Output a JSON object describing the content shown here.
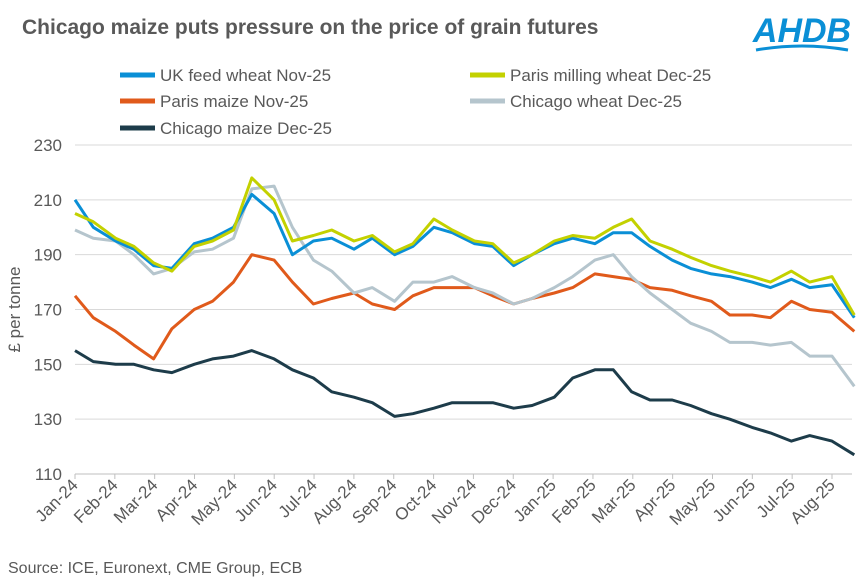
{
  "title": "Chicago maize puts pressure on the price of grain futures",
  "logo_text": "AHDB",
  "source": "Source: ICE, Euronext, CME Group, ECB",
  "colors": {
    "brand": "#0a8fd6"
  },
  "chart_data": {
    "type": "line",
    "title": "Chicago maize puts pressure on the price of grain futures",
    "xlabel": "",
    "ylabel": "£ per tonne",
    "ylim": [
      110,
      230
    ],
    "yticks": [
      110,
      130,
      150,
      170,
      190,
      210,
      230
    ],
    "xticks": [
      "Jan-24",
      "Feb-24",
      "Mar-24",
      "Apr-24",
      "May-24",
      "Jun-24",
      "Jul-24",
      "Aug-24",
      "Sep-24",
      "Oct-24",
      "Nov-24",
      "Dec-24",
      "Jan-25",
      "Feb-25",
      "Mar-25",
      "Apr-25",
      "May-25",
      "Jun-25",
      "Jul-25",
      "Aug-25"
    ],
    "grid": "horizontal",
    "legend": "top",
    "x": [
      "2024-01-01",
      "2024-01-15",
      "2024-02-01",
      "2024-02-15",
      "2024-03-01",
      "2024-03-15",
      "2024-04-01",
      "2024-04-15",
      "2024-05-01",
      "2024-05-15",
      "2024-06-01",
      "2024-06-15",
      "2024-07-01",
      "2024-07-15",
      "2024-08-01",
      "2024-08-15",
      "2024-09-01",
      "2024-09-15",
      "2024-10-01",
      "2024-10-15",
      "2024-11-01",
      "2024-11-15",
      "2024-12-01",
      "2024-12-15",
      "2025-01-01",
      "2025-01-15",
      "2025-02-01",
      "2025-02-15",
      "2025-03-01",
      "2025-03-15",
      "2025-04-01",
      "2025-04-15",
      "2025-05-01",
      "2025-05-15",
      "2025-06-01",
      "2025-06-15",
      "2025-07-01",
      "2025-07-15",
      "2025-08-01",
      "2025-08-18"
    ],
    "series": [
      {
        "name": "UK feed wheat Nov-25",
        "color": "#0a8fd6",
        "values": [
          210,
          200,
          195,
          192,
          186,
          185,
          194,
          196,
          200,
          212,
          205,
          190,
          195,
          196,
          192,
          196,
          190,
          193,
          200,
          198,
          194,
          193,
          186,
          190,
          194,
          196,
          194,
          198,
          198,
          193,
          188,
          185,
          183,
          182,
          180,
          178,
          181,
          178,
          179,
          167
        ]
      },
      {
        "name": "Paris milling wheat Dec-25",
        "color": "#c3d100",
        "values": [
          205,
          202,
          196,
          193,
          187,
          184,
          193,
          195,
          199,
          218,
          210,
          195,
          197,
          199,
          195,
          197,
          191,
          194,
          203,
          199,
          195,
          194,
          187,
          190,
          195,
          197,
          196,
          200,
          203,
          195,
          192,
          189,
          186,
          184,
          182,
          180,
          184,
          180,
          182,
          168
        ]
      },
      {
        "name": "Paris maize Nov-25",
        "color": "#e05a1b",
        "values": [
          175,
          167,
          162,
          157,
          152,
          163,
          170,
          173,
          180,
          190,
          188,
          180,
          172,
          174,
          176,
          172,
          170,
          175,
          178,
          178,
          178,
          175,
          172,
          174,
          176,
          178,
          183,
          182,
          181,
          178,
          177,
          175,
          173,
          168,
          168,
          167,
          173,
          170,
          169,
          162
        ]
      },
      {
        "name": "Chicago wheat Dec-25",
        "color": "#b5c5cd",
        "values": [
          199,
          196,
          195,
          190,
          183,
          185,
          191,
          192,
          196,
          214,
          215,
          200,
          188,
          184,
          176,
          178,
          173,
          180,
          180,
          182,
          178,
          176,
          172,
          174,
          178,
          182,
          188,
          190,
          182,
          176,
          170,
          165,
          162,
          158,
          158,
          157,
          158,
          153,
          153,
          142
        ]
      },
      {
        "name": "Chicago maize Dec-25",
        "color": "#1d3c4a",
        "values": [
          155,
          151,
          150,
          150,
          148,
          147,
          150,
          152,
          153,
          155,
          152,
          148,
          145,
          140,
          138,
          136,
          131,
          132,
          134,
          136,
          136,
          136,
          134,
          135,
          138,
          145,
          148,
          148,
          140,
          137,
          137,
          135,
          132,
          130,
          127,
          125,
          122,
          124,
          122,
          117
        ]
      }
    ]
  }
}
